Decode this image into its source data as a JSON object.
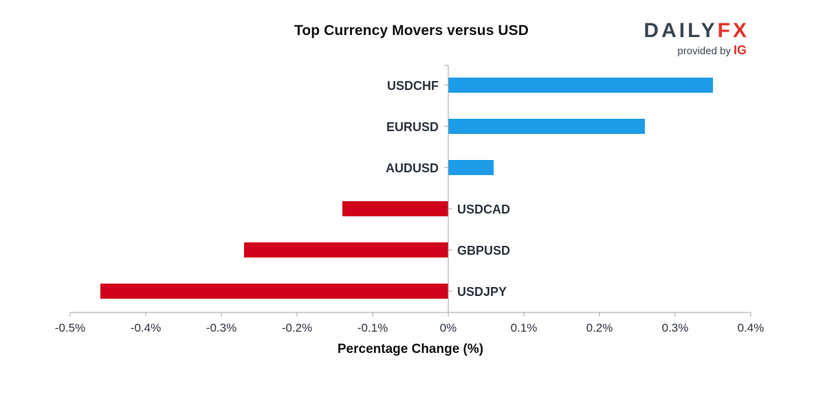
{
  "branding": {
    "logo_daily": "DAILY",
    "logo_fx": "FX",
    "provided_by": "provided by",
    "provider": "IG"
  },
  "chart_data": {
    "type": "bar",
    "orientation": "horizontal",
    "title": "Top Currency Movers versus USD",
    "xlabel": "Percentage Change (%)",
    "ylabel": "",
    "categories": [
      "USDCHF",
      "EURUSD",
      "AUDUSD",
      "USDCAD",
      "GBPUSD",
      "USDJPY"
    ],
    "values": [
      0.35,
      0.26,
      0.06,
      -0.14,
      -0.27,
      -0.46
    ],
    "xlim": [
      -0.5,
      0.4
    ],
    "x_ticks": [
      -0.5,
      -0.4,
      -0.3,
      -0.2,
      -0.1,
      0,
      0.1,
      0.2,
      0.3,
      0.4
    ],
    "x_tick_labels": [
      "-0.5%",
      "-0.4%",
      "-0.3%",
      "-0.2%",
      "-0.1%",
      "0%",
      "0.1%",
      "0.2%",
      "0.3%",
      "0.4%"
    ],
    "colors": {
      "positive": "#1e9be6",
      "negative": "#d0021b",
      "axis": "#9aa1a8"
    },
    "grid": false,
    "legend": "none"
  }
}
